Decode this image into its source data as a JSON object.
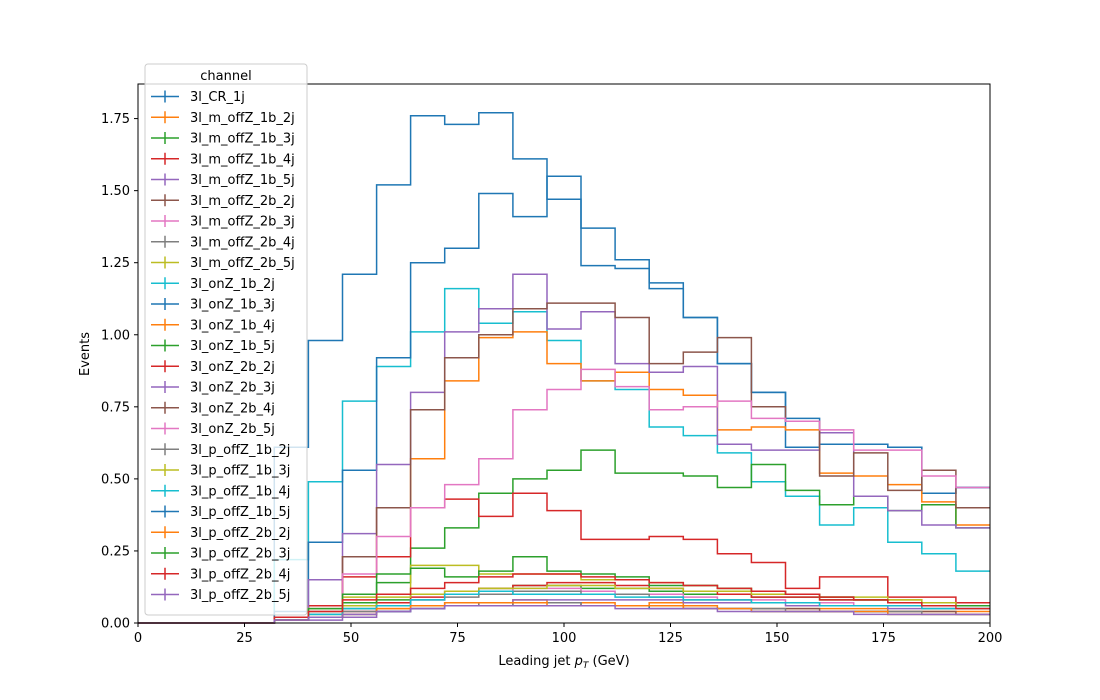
{
  "chart_data": {
    "type": "line",
    "style": "step-histogram",
    "xlabel": "Leading jet  pT (GeV)",
    "xlabel_main": "Leading jet  ",
    "xlabel_var": "p",
    "xlabel_sub": "T",
    "xlabel_unit": " (GeV)",
    "ylabel": "Events",
    "xlim": [
      0,
      200
    ],
    "ylim": [
      0,
      1.87
    ],
    "x_ticks": [
      "0",
      "25",
      "50",
      "75",
      "100",
      "125",
      "150",
      "175",
      "200"
    ],
    "y_ticks": [
      "0.00",
      "0.25",
      "0.50",
      "0.75",
      "1.00",
      "1.25",
      "1.50",
      "1.75"
    ],
    "legend": {
      "title": "channel",
      "placement": "top-left"
    },
    "bin_edges": [
      0,
      8,
      16,
      24,
      32,
      40,
      48,
      56,
      64,
      72,
      80,
      88,
      96,
      104,
      112,
      120,
      128,
      136,
      144,
      152,
      160,
      168,
      176,
      184,
      192,
      200
    ],
    "series": [
      {
        "name": "3l_CR_1j",
        "color": "#1f77b4",
        "values": [
          0,
          0,
          0,
          0,
          0.61,
          0.98,
          1.21,
          1.52,
          1.76,
          1.73,
          1.77,
          1.61,
          1.47,
          1.24,
          1.23,
          1.16,
          1.06,
          0.9,
          0.8,
          0.61,
          0.62,
          0.62,
          0.61,
          0.45,
          0.47
        ]
      },
      {
        "name": "3l_m_offZ_1b_2j",
        "color": "#ff7f0e",
        "values": [
          0,
          0,
          0,
          0,
          0.01,
          0.02,
          0.04,
          0.05,
          0.06,
          0.07,
          0.07,
          0.08,
          0.07,
          0.07,
          0.06,
          0.07,
          0.06,
          0.05,
          0.05,
          0.05,
          0.05,
          0.05,
          0.04,
          0.04,
          0.04
        ]
      },
      {
        "name": "3l_m_offZ_1b_3j",
        "color": "#2ca02c",
        "values": [
          0,
          0,
          0,
          0,
          0.01,
          0.02,
          0.05,
          0.08,
          0.1,
          0.11,
          0.12,
          0.13,
          0.13,
          0.12,
          0.12,
          0.11,
          0.1,
          0.1,
          0.09,
          0.09,
          0.08,
          0.08,
          0.07,
          0.07,
          0.06
        ]
      },
      {
        "name": "3l_m_offZ_1b_4j",
        "color": "#d62728",
        "values": [
          0,
          0,
          0,
          0,
          0.01,
          0.02,
          0.04,
          0.07,
          0.09,
          0.11,
          0.12,
          0.13,
          0.14,
          0.14,
          0.13,
          0.12,
          0.11,
          0.1,
          0.09,
          0.09,
          0.08,
          0.08,
          0.07,
          0.07,
          0.06
        ]
      },
      {
        "name": "3l_m_offZ_1b_5j",
        "color": "#9467bd",
        "values": [
          0,
          0,
          0,
          0,
          0.01,
          0.01,
          0.02,
          0.04,
          0.05,
          0.06,
          0.07,
          0.08,
          0.08,
          0.08,
          0.08,
          0.08,
          0.07,
          0.07,
          0.07,
          0.06,
          0.06,
          0.06,
          0.05,
          0.05,
          0.05
        ]
      },
      {
        "name": "3l_m_offZ_2b_2j",
        "color": "#8c564b",
        "values": [
          0,
          0,
          0,
          0,
          0.01,
          0.02,
          0.03,
          0.04,
          0.05,
          0.06,
          0.06,
          0.07,
          0.07,
          0.06,
          0.06,
          0.06,
          0.05,
          0.05,
          0.05,
          0.05,
          0.04,
          0.04,
          0.04,
          0.04,
          0.03
        ]
      },
      {
        "name": "3l_m_offZ_2b_3j",
        "color": "#e377c2",
        "values": [
          0,
          0,
          0,
          0,
          0.01,
          0.02,
          0.04,
          0.06,
          0.08,
          0.1,
          0.11,
          0.12,
          0.12,
          0.11,
          0.1,
          0.1,
          0.09,
          0.08,
          0.08,
          0.07,
          0.07,
          0.06,
          0.06,
          0.05,
          0.05
        ]
      },
      {
        "name": "3l_m_offZ_2b_4j",
        "color": "#7f7f7f",
        "values": [
          0,
          0,
          0,
          0,
          0.01,
          0.02,
          0.04,
          0.06,
          0.08,
          0.09,
          0.1,
          0.11,
          0.11,
          0.1,
          0.1,
          0.09,
          0.08,
          0.08,
          0.07,
          0.07,
          0.06,
          0.06,
          0.06,
          0.05,
          0.05
        ]
      },
      {
        "name": "3l_m_offZ_2b_5j",
        "color": "#bcbd22",
        "values": [
          0,
          0,
          0,
          0,
          0.01,
          0.03,
          0.06,
          0.09,
          0.1,
          0.11,
          0.12,
          0.12,
          0.13,
          0.13,
          0.12,
          0.12,
          0.11,
          0.11,
          0.1,
          0.1,
          0.09,
          0.08,
          0.08,
          0.07,
          0.07
        ]
      },
      {
        "name": "3l_onZ_1b_2j",
        "color": "#17becf",
        "values": [
          0,
          0,
          0,
          0,
          0.22,
          0.49,
          0.77,
          0.89,
          1.01,
          1.16,
          1.04,
          1.08,
          0.98,
          0.84,
          0.81,
          0.68,
          0.65,
          0.59,
          0.49,
          0.44,
          0.34,
          0.4,
          0.28,
          0.24,
          0.18
        ]
      },
      {
        "name": "3l_onZ_1b_3j",
        "color": "#1f77b4",
        "values": [
          0,
          0,
          0,
          0,
          0.04,
          0.28,
          0.53,
          0.92,
          1.25,
          1.3,
          1.49,
          1.41,
          1.55,
          1.37,
          1.26,
          1.18,
          1.06,
          0.9,
          0.8,
          0.71,
          0.62,
          0.62,
          0.61,
          0.45,
          0.47
        ]
      },
      {
        "name": "3l_onZ_1b_4j",
        "color": "#ff7f0e",
        "values": [
          0,
          0,
          0,
          0,
          0.01,
          0.06,
          0.23,
          0.4,
          0.57,
          0.84,
          0.99,
          1.01,
          0.9,
          0.84,
          0.87,
          0.81,
          0.79,
          0.67,
          0.68,
          0.67,
          0.52,
          0.51,
          0.48,
          0.42,
          0.34
        ]
      },
      {
        "name": "3l_onZ_1b_5j",
        "color": "#2ca02c",
        "values": [
          0,
          0,
          0,
          0,
          0.01,
          0.02,
          0.07,
          0.14,
          0.26,
          0.33,
          0.45,
          0.5,
          0.53,
          0.6,
          0.52,
          0.52,
          0.51,
          0.47,
          0.55,
          0.46,
          0.41,
          0.44,
          0.39,
          0.41,
          0.33
        ]
      },
      {
        "name": "3l_onZ_2b_2j",
        "color": "#d62728",
        "values": [
          0,
          0,
          0,
          0,
          0.01,
          0.06,
          0.16,
          0.23,
          0.4,
          0.43,
          0.37,
          0.45,
          0.39,
          0.29,
          0.29,
          0.3,
          0.29,
          0.24,
          0.21,
          0.12,
          0.16,
          0.16,
          0.09,
          0.09,
          0.07
        ]
      },
      {
        "name": "3l_onZ_2b_3j",
        "color": "#9467bd",
        "values": [
          0,
          0,
          0,
          0,
          0.01,
          0.15,
          0.31,
          0.55,
          0.8,
          1.01,
          1.09,
          1.21,
          1.02,
          1.08,
          0.9,
          0.87,
          0.89,
          0.62,
          0.6,
          0.6,
          0.66,
          0.44,
          0.39,
          0.34,
          0.33
        ]
      },
      {
        "name": "3l_onZ_2b_4j",
        "color": "#8c564b",
        "values": [
          0,
          0,
          0,
          0,
          0.01,
          0.04,
          0.23,
          0.4,
          0.74,
          0.92,
          1.0,
          1.09,
          1.11,
          1.11,
          1.06,
          0.9,
          0.94,
          0.99,
          0.75,
          0.7,
          0.51,
          0.59,
          0.46,
          0.53,
          0.4
        ]
      },
      {
        "name": "3l_onZ_2b_5j",
        "color": "#e377c2",
        "values": [
          0,
          0,
          0,
          0,
          0.01,
          0.05,
          0.17,
          0.3,
          0.4,
          0.48,
          0.57,
          0.74,
          0.81,
          0.88,
          0.82,
          0.74,
          0.75,
          0.77,
          0.71,
          0.7,
          0.67,
          0.6,
          0.6,
          0.51,
          0.47
        ]
      },
      {
        "name": "3l_p_offZ_1b_2j",
        "color": "#7f7f7f",
        "values": [
          0,
          0,
          0,
          0,
          0.01,
          0.03,
          0.05,
          0.06,
          0.06,
          0.07,
          0.06,
          0.07,
          0.07,
          0.06,
          0.06,
          0.06,
          0.05,
          0.05,
          0.05,
          0.04,
          0.04,
          0.04,
          0.04,
          0.03,
          0.03
        ]
      },
      {
        "name": "3l_p_offZ_1b_3j",
        "color": "#bcbd22",
        "values": [
          0,
          0,
          0,
          0,
          0.02,
          0.05,
          0.09,
          0.1,
          0.2,
          0.2,
          0.17,
          0.17,
          0.17,
          0.15,
          0.15,
          0.14,
          0.13,
          0.12,
          0.11,
          0.1,
          0.09,
          0.09,
          0.08,
          0.07,
          0.06
        ]
      },
      {
        "name": "3l_p_offZ_1b_4j",
        "color": "#17becf",
        "values": [
          0,
          0,
          0,
          0,
          0.01,
          0.03,
          0.05,
          0.06,
          0.08,
          0.1,
          0.11,
          0.1,
          0.1,
          0.1,
          0.09,
          0.09,
          0.08,
          0.08,
          0.07,
          0.07,
          0.06,
          0.06,
          0.06,
          0.05,
          0.05
        ]
      },
      {
        "name": "3l_p_offZ_1b_5j",
        "color": "#1f77b4",
        "values": [
          0,
          0,
          0,
          0,
          0.01,
          0.02,
          0.03,
          0.04,
          0.05,
          0.06,
          0.06,
          0.06,
          0.06,
          0.06,
          0.06,
          0.05,
          0.05,
          0.05,
          0.04,
          0.04,
          0.04,
          0.04,
          0.03,
          0.03,
          0.03
        ]
      },
      {
        "name": "3l_p_offZ_2b_2j",
        "color": "#ff7f0e",
        "values": [
          0,
          0,
          0,
          0,
          0.01,
          0.02,
          0.03,
          0.05,
          0.06,
          0.07,
          0.07,
          0.07,
          0.06,
          0.06,
          0.06,
          0.06,
          0.05,
          0.05,
          0.04,
          0.04,
          0.04,
          0.04,
          0.03,
          0.03,
          0.03
        ]
      },
      {
        "name": "3l_p_offZ_2b_3j",
        "color": "#2ca02c",
        "values": [
          0,
          0,
          0,
          0,
          0.02,
          0.05,
          0.1,
          0.17,
          0.19,
          0.16,
          0.18,
          0.23,
          0.18,
          0.17,
          0.16,
          0.13,
          0.13,
          0.12,
          0.11,
          0.1,
          0.09,
          0.08,
          0.07,
          0.06,
          0.06
        ]
      },
      {
        "name": "3l_p_offZ_2b_4j",
        "color": "#d62728",
        "values": [
          0,
          0,
          0,
          0,
          0.02,
          0.04,
          0.08,
          0.1,
          0.12,
          0.14,
          0.16,
          0.17,
          0.17,
          0.16,
          0.15,
          0.14,
          0.13,
          0.12,
          0.11,
          0.1,
          0.09,
          0.08,
          0.07,
          0.06,
          0.05
        ]
      },
      {
        "name": "3l_p_offZ_2b_5j",
        "color": "#9467bd",
        "values": [
          0,
          0,
          0,
          0,
          0.01,
          0.02,
          0.03,
          0.04,
          0.05,
          0.06,
          0.06,
          0.06,
          0.06,
          0.06,
          0.05,
          0.05,
          0.05,
          0.04,
          0.04,
          0.04,
          0.04,
          0.03,
          0.03,
          0.03,
          0.03
        ]
      }
    ]
  }
}
